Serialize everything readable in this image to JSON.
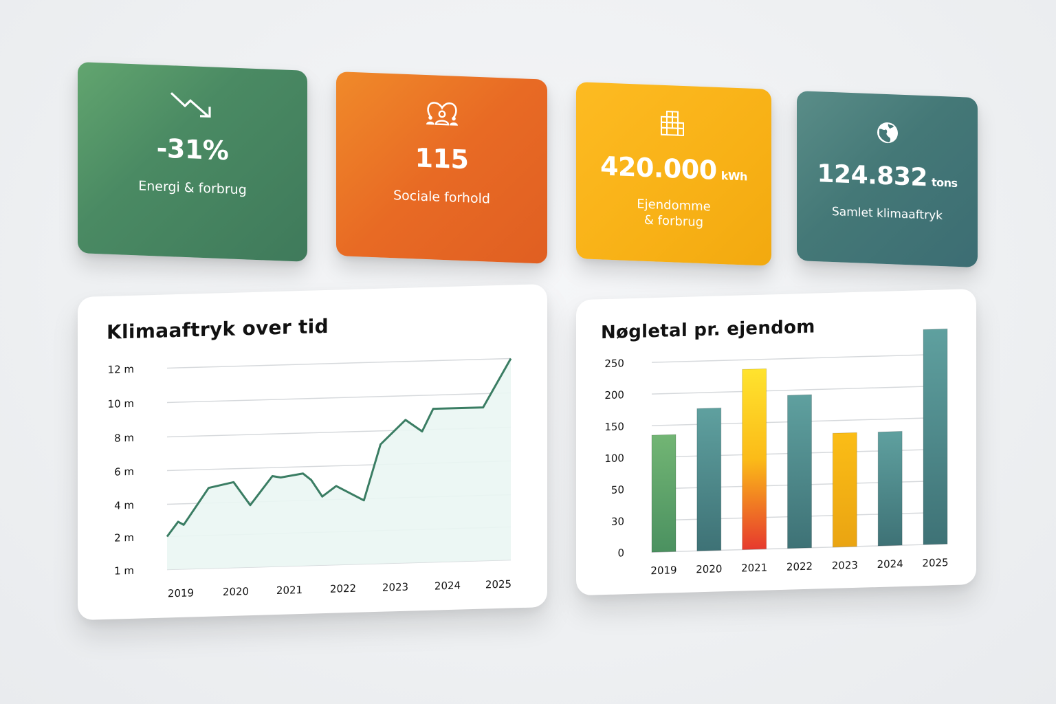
{
  "kpis": [
    {
      "id": "energy",
      "icon": "trend-down-icon",
      "value": "-31%",
      "unit": "",
      "label": "Energi & forbrug",
      "color": "#4a8a63"
    },
    {
      "id": "social",
      "icon": "community-heart-icon",
      "value": "115",
      "unit": "",
      "label": "Sociale forhold",
      "color": "#e86a24"
    },
    {
      "id": "property",
      "icon": "building-icon",
      "value": "420.000",
      "unit": "kWh",
      "label_line1": "Ejendomme",
      "label_line2": "& forbrug",
      "color": "#f8b116"
    },
    {
      "id": "climate",
      "icon": "globe-icon",
      "value": "124.832",
      "unit": "tons",
      "label": "Samlet klimaaftryk",
      "color": "#447877"
    }
  ],
  "line_panel": {
    "title": "Klimaaftryk over tid"
  },
  "bar_panel": {
    "title": "Nøgletal pr. ejendom"
  },
  "chart_data": [
    {
      "type": "area",
      "title": "Klimaaftryk over tid",
      "xlabel": "",
      "ylabel": "",
      "y_ticks": [
        "1 m",
        "2 m",
        "4 m",
        "6 m",
        "8 m",
        "10 m",
        "12 m"
      ],
      "x_ticks": [
        "2019",
        "2020",
        "2021",
        "2022",
        "2023",
        "2024",
        "2025"
      ],
      "x": [
        2019.0,
        2019.2,
        2019.3,
        2019.75,
        2020.2,
        2020.5,
        2020.9,
        2021.05,
        2021.45,
        2021.6,
        2021.8,
        2022.05,
        2022.55,
        2022.85,
        2023.3,
        2023.6,
        2023.8,
        2024.7,
        2025.2
      ],
      "values": [
        2.0,
        2.9,
        2.7,
        4.9,
        5.2,
        3.8,
        5.5,
        5.4,
        5.6,
        5.2,
        4.2,
        4.8,
        3.9,
        7.2,
        8.6,
        7.9,
        9.2,
        9.2,
        12.0
      ],
      "series_color": "#3a7d63",
      "fill_color": "#eaf6f3",
      "grid": true
    },
    {
      "type": "bar",
      "title": "Nøgletal pr. ejendom",
      "categories": [
        "2019",
        "2020",
        "2021",
        "2022",
        "2023",
        "2024",
        "2025"
      ],
      "values": [
        135,
        175,
        235,
        192,
        130,
        130,
        290
      ],
      "y_ticks": [
        "0",
        "30",
        "50",
        "100",
        "150",
        "200",
        "250"
      ],
      "bar_colors": [
        "green",
        "teal",
        "yellow-red",
        "teal",
        "amber",
        "teal",
        "teal"
      ],
      "grid": true
    }
  ]
}
